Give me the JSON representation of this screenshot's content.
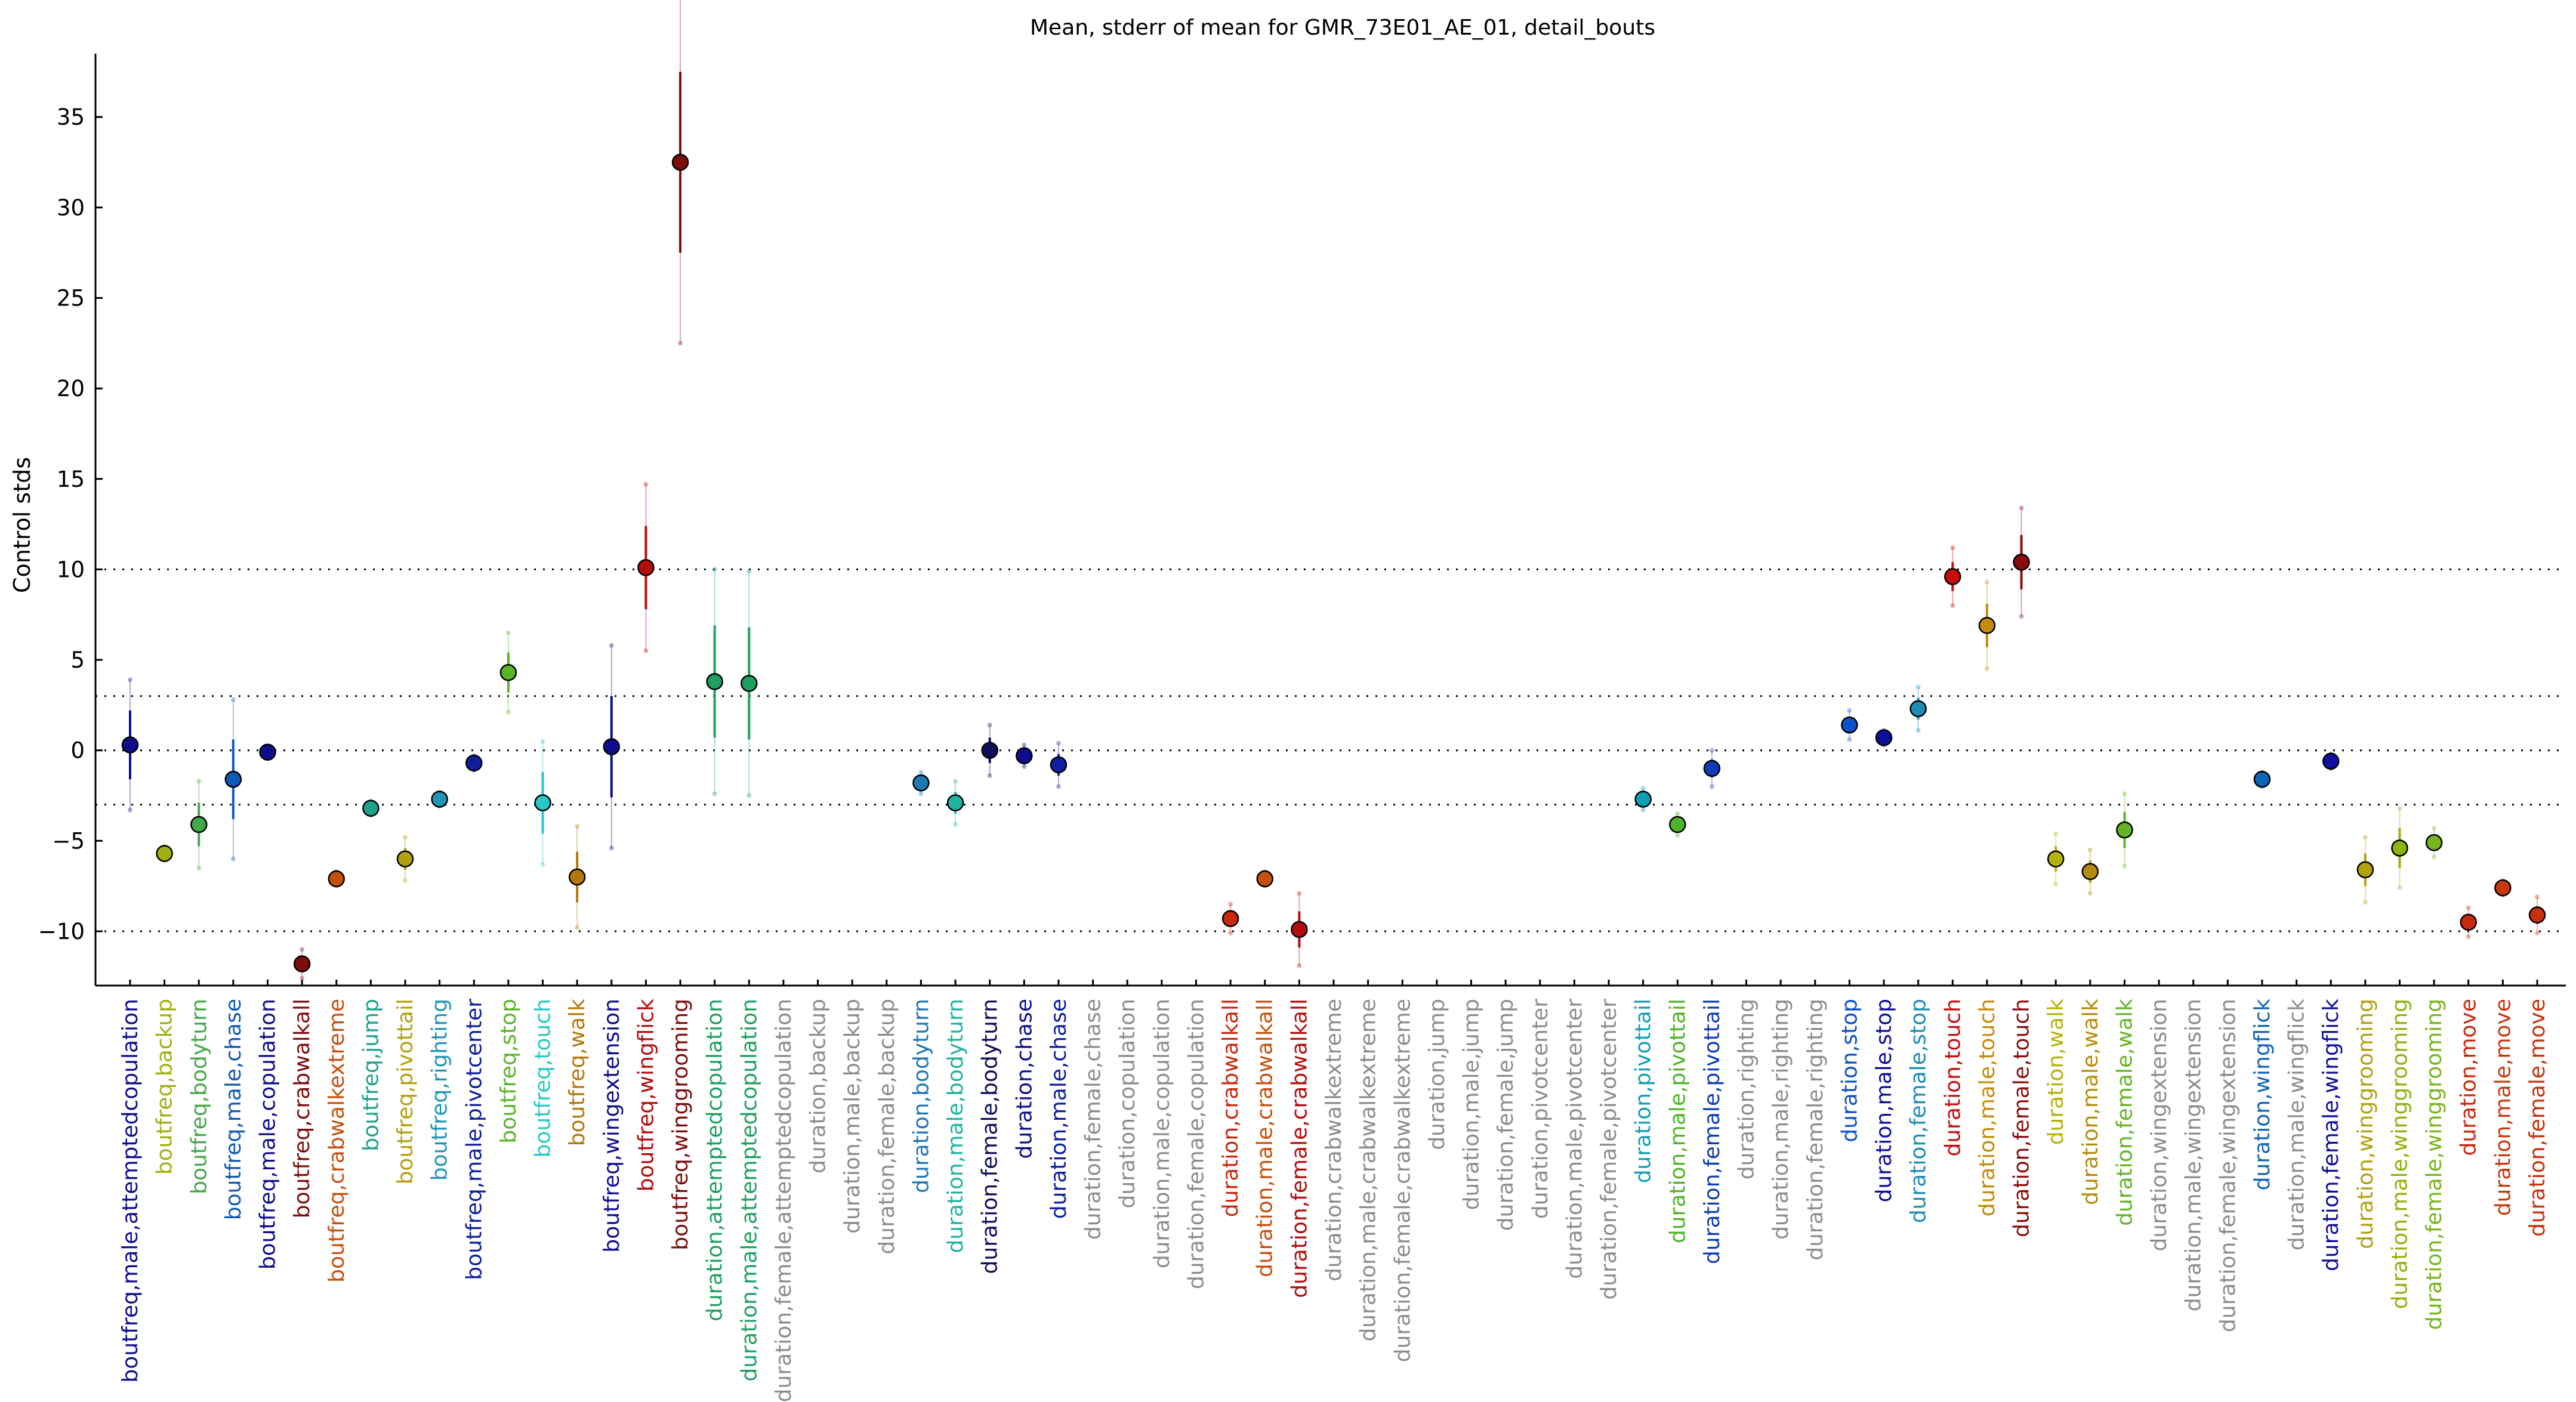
{
  "chart_data": {
    "type": "scatter",
    "title": "Mean, stderr of mean for GMR_73E01_AE_01, detail_bouts",
    "ylabel": "Control stds",
    "xlabel": "",
    "ylim": [
      -13,
      38.5
    ],
    "yticks": [
      -10,
      -5,
      0,
      5,
      10,
      15,
      20,
      25,
      30,
      35
    ],
    "reference_lines": [
      -10,
      -3,
      0,
      3,
      10
    ],
    "grid": false,
    "legend": "none",
    "categories": [
      {
        "label": "boutfreq,male,attemptedcopulation",
        "value": 0.3,
        "err": 1.9,
        "err2": 3.6,
        "color": "#0e0e8c"
      },
      {
        "label": "boutfreq,backup",
        "value": -5.7,
        "err": 0.2,
        "err2": 0.4,
        "color": "#a0b00f"
      },
      {
        "label": "boutfreq,bodyturn",
        "value": -4.1,
        "err": 1.2,
        "err2": 2.4,
        "color": "#44a84a"
      },
      {
        "label": "boutfreq,male,chase",
        "value": -1.6,
        "err": 2.2,
        "err2": 4.4,
        "color": "#0f5ab4"
      },
      {
        "label": "boutfreq,male,copulation",
        "value": -0.1,
        "err": 0.1,
        "err2": 0.2,
        "color": "#0e0e8c"
      },
      {
        "label": "boutfreq,crabwalkall",
        "value": -11.8,
        "err": 0.4,
        "err2": 0.8,
        "color": "#7d0c0c"
      },
      {
        "label": "boutfreq,crabwalkextreme",
        "value": -7.1,
        "err": 0.2,
        "err2": 0.4,
        "color": "#c4500c"
      },
      {
        "label": "boutfreq,jump",
        "value": -3.2,
        "err": 0.2,
        "err2": 0.4,
        "color": "#1ea28c"
      },
      {
        "label": "boutfreq,pivottail",
        "value": -6.0,
        "err": 0.6,
        "err2": 1.2,
        "color": "#b4a00c"
      },
      {
        "label": "boutfreq,righting",
        "value": -2.7,
        "err": 0.2,
        "err2": 0.4,
        "color": "#1e96b4"
      },
      {
        "label": "boutfreq,male,pivotcenter",
        "value": -0.7,
        "err": 0.2,
        "err2": 0.4,
        "color": "#0e1e9c"
      },
      {
        "label": "boutfreq,stop",
        "value": 4.3,
        "err": 1.1,
        "err2": 2.2,
        "color": "#5ab428"
      },
      {
        "label": "boutfreq,touch",
        "value": -2.9,
        "err": 1.7,
        "err2": 3.4,
        "color": "#28c8c8"
      },
      {
        "label": "boutfreq,walk",
        "value": -7.0,
        "err": 1.4,
        "err2": 2.8,
        "color": "#b4780c"
      },
      {
        "label": "boutfreq,wingextension",
        "value": 0.2,
        "err": 2.8,
        "err2": 5.6,
        "color": "#0e0e8c"
      },
      {
        "label": "boutfreq,wingflick",
        "value": 10.1,
        "err": 2.3,
        "err2": 4.6,
        "color": "#b40c0c"
      },
      {
        "label": "boutfreq,winggrooming",
        "value": 32.5,
        "err": 5.0,
        "err2": 10.0,
        "color": "#7d0c0c"
      },
      {
        "label": "duration,attemptedcopulation",
        "value": 3.8,
        "err": 3.1,
        "err2": 6.2,
        "color": "#1ea060"
      },
      {
        "label": "duration,male,attemptedcopulation",
        "value": 3.7,
        "err": 3.1,
        "err2": 6.2,
        "color": "#1ea060"
      },
      {
        "label": "duration,female,attemptedcopulation",
        "value": null,
        "color": "#8c8c8c"
      },
      {
        "label": "duration,backup",
        "value": null,
        "color": "#8c8c8c"
      },
      {
        "label": "duration,male,backup",
        "value": null,
        "color": "#8c8c8c"
      },
      {
        "label": "duration,female,backup",
        "value": null,
        "color": "#8c8c8c"
      },
      {
        "label": "duration,bodyturn",
        "value": -1.8,
        "err": 0.3,
        "err2": 0.6,
        "color": "#1e78b4"
      },
      {
        "label": "duration,male,bodyturn",
        "value": -2.9,
        "err": 0.6,
        "err2": 1.2,
        "color": "#1eb4a0"
      },
      {
        "label": "duration,female,bodyturn",
        "value": 0.0,
        "err": 0.7,
        "err2": 1.4,
        "color": "#0e0e5a"
      },
      {
        "label": "duration,chase",
        "value": -0.3,
        "err": 0.3,
        "err2": 0.6,
        "color": "#0e0e8c"
      },
      {
        "label": "duration,male,chase",
        "value": -0.8,
        "err": 0.6,
        "err2": 1.2,
        "color": "#0e1ea0"
      },
      {
        "label": "duration,female,chase",
        "value": null,
        "color": "#8c8c8c"
      },
      {
        "label": "duration,copulation",
        "value": null,
        "color": "#8c8c8c"
      },
      {
        "label": "duration,male,copulation",
        "value": null,
        "color": "#8c8c8c"
      },
      {
        "label": "duration,female,copulation",
        "value": null,
        "color": "#8c8c8c"
      },
      {
        "label": "duration,crabwalkall",
        "value": -9.3,
        "err": 0.4,
        "err2": 0.8,
        "color": "#c8280c"
      },
      {
        "label": "duration,male,crabwalkall",
        "value": -7.1,
        "err": 0.2,
        "err2": 0.4,
        "color": "#c4500c"
      },
      {
        "label": "duration,female,crabwalkall",
        "value": -9.9,
        "err": 1.0,
        "err2": 2.0,
        "color": "#b40c0c"
      },
      {
        "label": "duration,crabwalkextreme",
        "value": null,
        "color": "#8c8c8c"
      },
      {
        "label": "duration,male,crabwalkextreme",
        "value": null,
        "color": "#8c8c8c"
      },
      {
        "label": "duration,female,crabwalkextreme",
        "value": null,
        "color": "#8c8c8c"
      },
      {
        "label": "duration,jump",
        "value": null,
        "color": "#8c8c8c"
      },
      {
        "label": "duration,male,jump",
        "value": null,
        "color": "#8c8c8c"
      },
      {
        "label": "duration,female,jump",
        "value": null,
        "color": "#8c8c8c"
      },
      {
        "label": "duration,pivotcenter",
        "value": null,
        "color": "#8c8c8c"
      },
      {
        "label": "duration,male,pivotcenter",
        "value": null,
        "color": "#8c8c8c"
      },
      {
        "label": "duration,female,pivotcenter",
        "value": null,
        "color": "#8c8c8c"
      },
      {
        "label": "duration,pivottail",
        "value": -2.7,
        "err": 0.3,
        "err2": 0.6,
        "color": "#0ea0b4"
      },
      {
        "label": "duration,male,pivottail",
        "value": -4.1,
        "err": 0.3,
        "err2": 0.6,
        "color": "#50b428"
      },
      {
        "label": "duration,female,pivottail",
        "value": -1.0,
        "err": 0.5,
        "err2": 1.0,
        "color": "#0e3cb4"
      },
      {
        "label": "duration,righting",
        "value": null,
        "color": "#8c8c8c"
      },
      {
        "label": "duration,male,righting",
        "value": null,
        "color": "#8c8c8c"
      },
      {
        "label": "duration,female,righting",
        "value": null,
        "color": "#8c8c8c"
      },
      {
        "label": "duration,stop",
        "value": 1.4,
        "err": 0.4,
        "err2": 0.8,
        "color": "#0e50c8"
      },
      {
        "label": "duration,male,stop",
        "value": 0.7,
        "err": 0.2,
        "err2": 0.4,
        "color": "#0e0e9c"
      },
      {
        "label": "duration,female,stop",
        "value": 2.3,
        "err": 0.6,
        "err2": 1.2,
        "color": "#1e8cb4"
      },
      {
        "label": "duration,touch",
        "value": 9.6,
        "err": 0.8,
        "err2": 1.6,
        "color": "#c80c0c"
      },
      {
        "label": "duration,male,touch",
        "value": 6.9,
        "err": 1.2,
        "err2": 2.4,
        "color": "#c48c0c"
      },
      {
        "label": "duration,female,touch",
        "value": 10.4,
        "err": 1.5,
        "err2": 3.0,
        "color": "#8c0c0c"
      },
      {
        "label": "duration,walk",
        "value": -6.0,
        "err": 0.7,
        "err2": 1.4,
        "color": "#b4b40c"
      },
      {
        "label": "duration,male,walk",
        "value": -6.7,
        "err": 0.6,
        "err2": 1.2,
        "color": "#b48c0c"
      },
      {
        "label": "duration,female,walk",
        "value": -4.4,
        "err": 1.0,
        "err2": 2.0,
        "color": "#64b428"
      },
      {
        "label": "duration,wingextension",
        "value": null,
        "color": "#8c8c8c"
      },
      {
        "label": "duration,male,wingextension",
        "value": null,
        "color": "#8c8c8c"
      },
      {
        "label": "duration,female,wingextension",
        "value": null,
        "color": "#8c8c8c"
      },
      {
        "label": "duration,wingflick",
        "value": -1.6,
        "err": 0.2,
        "err2": 0.4,
        "color": "#0e64b4"
      },
      {
        "label": "duration,male,wingflick",
        "value": null,
        "color": "#8c8c8c"
      },
      {
        "label": "duration,female,wingflick",
        "value": -0.6,
        "err": 0.2,
        "err2": 0.4,
        "color": "#0e0ea0"
      },
      {
        "label": "duration,winggrooming",
        "value": -6.6,
        "err": 0.9,
        "err2": 1.8,
        "color": "#b4a00c"
      },
      {
        "label": "duration,male,winggrooming",
        "value": -5.4,
        "err": 1.1,
        "err2": 2.2,
        "color": "#8cb40c"
      },
      {
        "label": "duration,female,winggrooming",
        "value": -5.1,
        "err": 0.4,
        "err2": 0.8,
        "color": "#78b41e"
      },
      {
        "label": "duration,move",
        "value": -9.5,
        "err": 0.4,
        "err2": 0.8,
        "color": "#c8280c"
      },
      {
        "label": "duration,male,move",
        "value": -7.6,
        "err": 0.2,
        "err2": 0.4,
        "color": "#c8380c"
      },
      {
        "label": "duration,female,move",
        "value": -9.1,
        "err": 0.5,
        "err2": 1.0,
        "color": "#c8300c"
      }
    ]
  }
}
